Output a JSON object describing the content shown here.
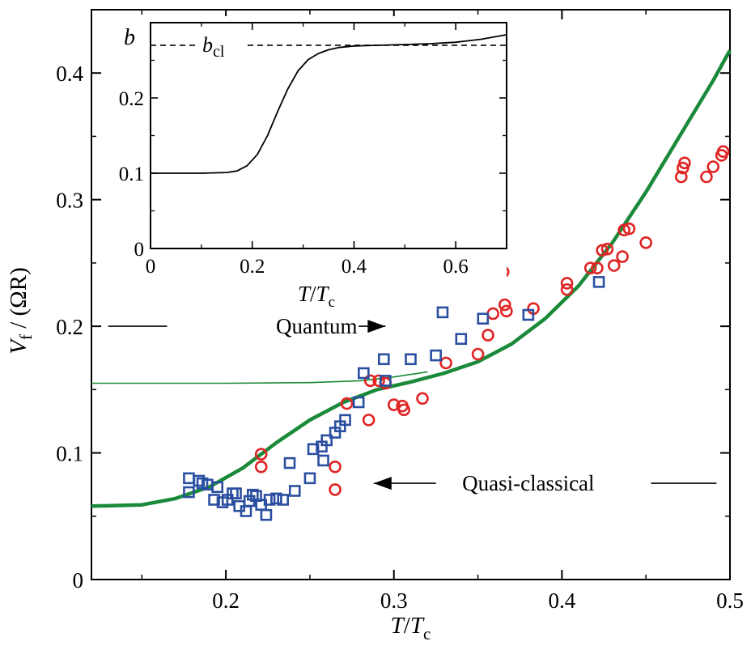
{
  "chart_data": [
    {
      "id": "main",
      "type": "scatter",
      "xlabel": {
        "base": "T",
        "slash": "/",
        "base2": "T",
        "sub": "c"
      },
      "ylabel": {
        "base": "V",
        "sub": "f",
        "rest": " / (ΩR)"
      },
      "xlim": [
        0.12,
        0.5
      ],
      "ylim": [
        0,
        0.45
      ],
      "x_ticks": [
        0.2,
        0.3,
        0.4,
        0.5
      ],
      "x_tick_labels": [
        "0.2",
        "0.3",
        "0.4",
        "0.5"
      ],
      "y_ticks": [
        0,
        0.1,
        0.2,
        0.3,
        0.4
      ],
      "y_tick_labels": [
        "0",
        "0.1",
        "0.2",
        "0.3",
        "0.4"
      ],
      "annotations": [
        {
          "text": "Quantum",
          "x": 0.254,
          "y": 0.2,
          "arrow": "right",
          "line_from": 0.13,
          "line_to": 0.165,
          "arrow_from": 0.279,
          "arrow_to": 0.295
        },
        {
          "text": "Quasi-classical",
          "x": 0.38,
          "y": 0.076,
          "arrow": "left",
          "arrow_from": 0.325,
          "arrow_to": 0.288,
          "line_from": 0.453,
          "line_to": 0.492
        }
      ],
      "series": [
        {
          "kind": "line",
          "color": "#1a8a3a",
          "weight": "thick",
          "x": [
            0.12,
            0.15,
            0.17,
            0.19,
            0.21,
            0.23,
            0.25,
            0.27,
            0.29,
            0.31,
            0.33,
            0.35,
            0.37,
            0.39,
            0.41,
            0.43,
            0.45,
            0.47,
            0.49,
            0.5
          ],
          "y": [
            0.058,
            0.059,
            0.064,
            0.073,
            0.088,
            0.108,
            0.126,
            0.14,
            0.15,
            0.156,
            0.163,
            0.172,
            0.186,
            0.206,
            0.232,
            0.266,
            0.306,
            0.35,
            0.394,
            0.418
          ]
        },
        {
          "kind": "line",
          "color": "#1a8a3a",
          "weight": "thin",
          "x": [
            0.12,
            0.15,
            0.2,
            0.25,
            0.28,
            0.3,
            0.31,
            0.32
          ],
          "y": [
            0.155,
            0.155,
            0.155,
            0.1555,
            0.157,
            0.16,
            0.162,
            0.164
          ]
        },
        {
          "kind": "circles",
          "color": "#e02424",
          "points": [
            [
              0.221,
              0.099
            ],
            [
              0.221,
              0.089
            ],
            [
              0.265,
              0.089
            ],
            [
              0.265,
              0.071
            ],
            [
              0.272,
              0.139
            ],
            [
              0.285,
              0.126
            ],
            [
              0.286,
              0.157
            ],
            [
              0.291,
              0.157
            ],
            [
              0.295,
              0.155
            ],
            [
              0.3,
              0.138
            ],
            [
              0.305,
              0.137
            ],
            [
              0.306,
              0.134
            ],
            [
              0.317,
              0.143
            ],
            [
              0.331,
              0.171
            ],
            [
              0.35,
              0.178
            ],
            [
              0.356,
              0.193
            ],
            [
              0.359,
              0.21
            ],
            [
              0.365,
              0.243
            ],
            [
              0.366,
              0.217
            ],
            [
              0.367,
              0.212
            ],
            [
              0.383,
              0.214
            ],
            [
              0.403,
              0.229
            ],
            [
              0.403,
              0.234
            ],
            [
              0.417,
              0.246
            ],
            [
              0.421,
              0.246
            ],
            [
              0.424,
              0.26
            ],
            [
              0.427,
              0.261
            ],
            [
              0.431,
              0.248
            ],
            [
              0.436,
              0.255
            ],
            [
              0.437,
              0.276
            ],
            [
              0.44,
              0.277
            ],
            [
              0.45,
              0.266
            ],
            [
              0.471,
              0.318
            ],
            [
              0.472,
              0.325
            ],
            [
              0.473,
              0.329
            ],
            [
              0.486,
              0.318
            ],
            [
              0.49,
              0.326
            ],
            [
              0.495,
              0.335
            ],
            [
              0.496,
              0.338
            ]
          ]
        },
        {
          "kind": "squares",
          "color": "#2a4ea0",
          "points": [
            [
              0.178,
              0.08
            ],
            [
              0.178,
              0.069
            ],
            [
              0.184,
              0.078
            ],
            [
              0.186,
              0.076
            ],
            [
              0.189,
              0.075
            ],
            [
              0.193,
              0.063
            ],
            [
              0.195,
              0.073
            ],
            [
              0.198,
              0.061
            ],
            [
              0.201,
              0.063
            ],
            [
              0.204,
              0.068
            ],
            [
              0.206,
              0.068
            ],
            [
              0.208,
              0.058
            ],
            [
              0.212,
              0.054
            ],
            [
              0.214,
              0.062
            ],
            [
              0.216,
              0.067
            ],
            [
              0.218,
              0.066
            ],
            [
              0.221,
              0.059
            ],
            [
              0.224,
              0.051
            ],
            [
              0.226,
              0.063
            ],
            [
              0.23,
              0.064
            ],
            [
              0.234,
              0.063
            ],
            [
              0.238,
              0.092
            ],
            [
              0.241,
              0.07
            ],
            [
              0.25,
              0.08
            ],
            [
              0.252,
              0.103
            ],
            [
              0.257,
              0.105
            ],
            [
              0.258,
              0.094
            ],
            [
              0.26,
              0.11
            ],
            [
              0.265,
              0.116
            ],
            [
              0.268,
              0.121
            ],
            [
              0.271,
              0.126
            ],
            [
              0.279,
              0.14
            ],
            [
              0.282,
              0.163
            ],
            [
              0.294,
              0.174
            ],
            [
              0.295,
              0.157
            ],
            [
              0.31,
              0.174
            ],
            [
              0.325,
              0.177
            ],
            [
              0.329,
              0.211
            ],
            [
              0.34,
              0.19
            ],
            [
              0.353,
              0.206
            ],
            [
              0.38,
              0.209
            ],
            [
              0.422,
              0.235
            ]
          ]
        }
      ]
    },
    {
      "id": "inset",
      "type": "line",
      "xlabel": {
        "base": "T",
        "slash": "/",
        "base2": "T",
        "sub": "c"
      },
      "ylabel": {
        "base": "b"
      },
      "xlim": [
        0,
        0.7
      ],
      "ylim": [
        0,
        0.3
      ],
      "x_ticks": [
        0,
        0.2,
        0.4,
        0.6
      ],
      "x_tick_labels": [
        "0",
        "0.2",
        "0.4",
        "0.6"
      ],
      "y_ticks": [
        0,
        0.1,
        0.2
      ],
      "y_tick_labels": [
        "0",
        "0.1",
        "0.2"
      ],
      "reference_line": {
        "y": 0.27,
        "style": "dashed",
        "label_base": "b",
        "label_sub": "cl"
      },
      "series": [
        {
          "kind": "line",
          "color": "#000000",
          "x": [
            0,
            0.05,
            0.1,
            0.15,
            0.17,
            0.19,
            0.21,
            0.23,
            0.25,
            0.27,
            0.29,
            0.31,
            0.33,
            0.35,
            0.37,
            0.4,
            0.45,
            0.5,
            0.55,
            0.6,
            0.65,
            0.7
          ],
          "y": [
            0.1,
            0.1,
            0.1,
            0.101,
            0.103,
            0.11,
            0.125,
            0.15,
            0.182,
            0.212,
            0.236,
            0.251,
            0.259,
            0.264,
            0.267,
            0.269,
            0.27,
            0.271,
            0.272,
            0.274,
            0.278,
            0.284
          ]
        }
      ]
    }
  ]
}
